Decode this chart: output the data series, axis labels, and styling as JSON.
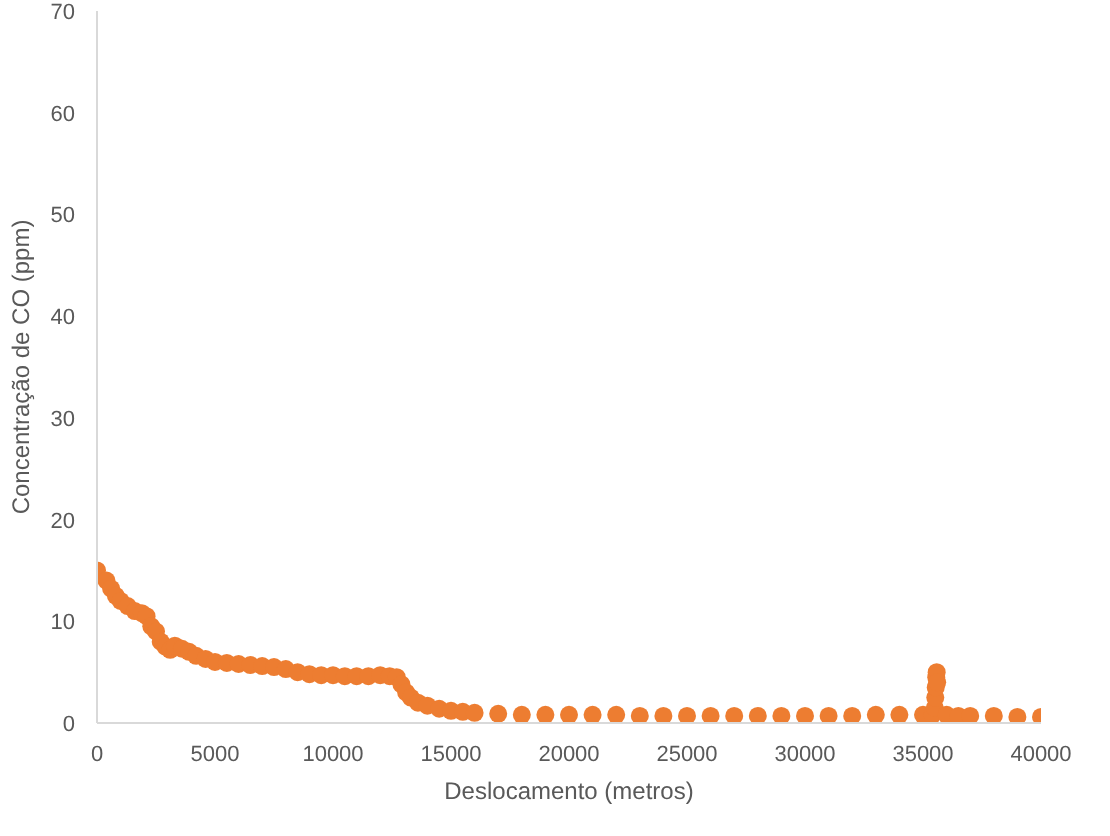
{
  "chart_data": {
    "type": "scatter",
    "xlabel": "Deslocamento (metros)",
    "ylabel": "Concentração de CO (ppm)",
    "xlim": [
      0,
      40000
    ],
    "xticks": [
      0,
      5000,
      10000,
      15000,
      20000,
      25000,
      30000,
      35000,
      40000
    ],
    "ylim": [
      0,
      70
    ],
    "yticks": [
      0,
      10,
      20,
      30,
      40,
      50,
      60,
      70
    ],
    "grid": false,
    "marker": "circle",
    "series": [
      {
        "color": "#ed7d31",
        "x": [
          0,
          400,
          600,
          800,
          1000,
          1300,
          1600,
          1900,
          2100,
          2300,
          2500,
          2700,
          2900,
          3100,
          3300,
          3600,
          3900,
          4200,
          4600,
          5000,
          5500,
          6000,
          6500,
          7000,
          7500,
          8000,
          8500,
          9000,
          9500,
          10000,
          10500,
          11000,
          11500,
          12000,
          12400,
          12700,
          12900,
          13100,
          13300,
          13600,
          14000,
          14500,
          15000,
          15500,
          16000,
          17000,
          18000,
          19000,
          20000,
          21000,
          22000,
          23000,
          24000,
          25000,
          26000,
          27000,
          28000,
          29000,
          30000,
          31000,
          32000,
          33000,
          34000,
          35000,
          35400,
          35500,
          35520,
          35540,
          35560,
          35580,
          35600,
          36000,
          36500,
          37000,
          38000,
          39000,
          40000
        ],
        "values": [
          15,
          14,
          13.2,
          12.5,
          12,
          11.5,
          11,
          10.8,
          10.5,
          9.5,
          9,
          8,
          7.5,
          7.2,
          7.6,
          7.3,
          7,
          6.6,
          6.3,
          6,
          5.9,
          5.8,
          5.7,
          5.6,
          5.5,
          5.3,
          5,
          4.8,
          4.7,
          4.7,
          4.6,
          4.6,
          4.6,
          4.7,
          4.6,
          4.5,
          3.8,
          3,
          2.5,
          2,
          1.7,
          1.4,
          1.2,
          1.1,
          1,
          0.9,
          0.8,
          0.8,
          0.8,
          0.8,
          0.8,
          0.7,
          0.7,
          0.7,
          0.7,
          0.7,
          0.7,
          0.7,
          0.7,
          0.7,
          0.7,
          0.8,
          0.8,
          0.8,
          0.8,
          1.5,
          2.5,
          3.5,
          4.5,
          5,
          4,
          0.8,
          0.7,
          0.7,
          0.7,
          0.6,
          0.6
        ]
      }
    ]
  }
}
